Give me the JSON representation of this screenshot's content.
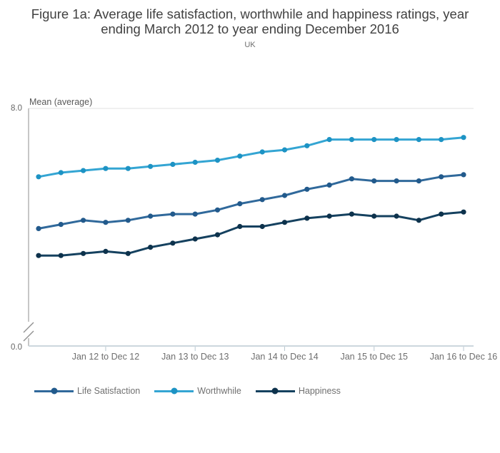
{
  "header": {
    "title_line1": "Figure 1a: Average life satisfaction, worthwhile and happiness ratings, year",
    "title_line2": "ending March 2012 to year ending December 2016",
    "subtitle": "UK"
  },
  "chart_data": {
    "type": "line",
    "title": "Figure 1a: Average life satisfaction, worthwhile and happiness ratings, year ending March 2012 to year ending December 2016",
    "subtitle": "UK",
    "ylabel": "Mean (average)",
    "y_axis": {
      "top_tick_label": "8.0",
      "bottom_tick_label": "0.0",
      "axis_break": true,
      "visible_value_at_top": 8.0
    },
    "x_ticks": [
      {
        "index": 3,
        "label": "Jan 12 to Dec 12"
      },
      {
        "index": 7,
        "label": "Jan 13 to Dec 13"
      },
      {
        "index": 11,
        "label": "Jan 14 to Dec 14"
      },
      {
        "index": 15,
        "label": "Jan 15 to Dec 15"
      },
      {
        "index": 19,
        "label": "Jan 16 to Dec 16"
      }
    ],
    "n_points": 20,
    "legend_position": "bottom-left",
    "grid": false,
    "series": [
      {
        "name": "Life Satisfaction",
        "color": "#30699b",
        "marker_color": "#225a8c",
        "values": [
          7.42,
          7.44,
          7.46,
          7.45,
          7.46,
          7.48,
          7.49,
          7.49,
          7.51,
          7.54,
          7.56,
          7.58,
          7.61,
          7.63,
          7.66,
          7.65,
          7.65,
          7.65,
          7.67,
          7.68
        ]
      },
      {
        "name": "Worthwhile",
        "color": "#34a5d3",
        "marker_color": "#1d93c4",
        "values": [
          7.67,
          7.69,
          7.7,
          7.71,
          7.71,
          7.72,
          7.73,
          7.74,
          7.75,
          7.77,
          7.79,
          7.8,
          7.82,
          7.85,
          7.85,
          7.85,
          7.85,
          7.85,
          7.85,
          7.86
        ]
      },
      {
        "name": "Happiness",
        "color": "#15415f",
        "marker_color": "#0d324c",
        "values": [
          7.29,
          7.29,
          7.3,
          7.31,
          7.3,
          7.33,
          7.35,
          7.37,
          7.39,
          7.43,
          7.43,
          7.45,
          7.47,
          7.48,
          7.49,
          7.48,
          7.48,
          7.46,
          7.49,
          7.5
        ]
      }
    ],
    "colors": {
      "title_text": "#414141",
      "subtitle_text": "#6e6e6e",
      "ylabel_text": "#595959",
      "y_tick_text": "#666666",
      "x_tick_text": "#6e6e6e",
      "y_axis_line": "#8f8f8f",
      "plot_top_border": "#e1e1e1",
      "x_axis_line": "#ccd7dd",
      "x_tick_mark": "#b8c7d0"
    }
  }
}
